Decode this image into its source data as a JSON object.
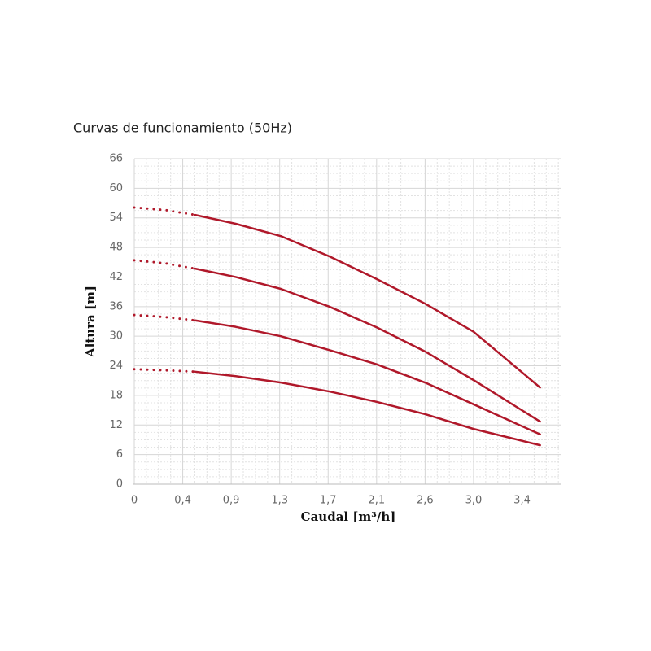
{
  "chart_data": {
    "type": "line",
    "title": "Curvas de funcionamiento (50Hz)",
    "x_label": "Caudal [m³/h]",
    "y_label": "Altura [m]",
    "xlim": [
      0,
      3.79
    ],
    "ylim": [
      0,
      66
    ],
    "xticks": [
      0,
      {
        "value": 0.43,
        "label": "0,4"
      },
      {
        "value": 0.86,
        "label": "0,9"
      },
      {
        "value": 1.29,
        "label": "1,3"
      },
      {
        "value": 1.72,
        "label": "1,7"
      },
      {
        "value": 2.15,
        "label": "2,1"
      },
      {
        "value": 2.58,
        "label": "2,6"
      },
      {
        "value": 3.01,
        "label": "3,0"
      },
      {
        "value": 3.44,
        "label": "3,4"
      }
    ],
    "yticks": [
      0,
      6,
      12,
      18,
      24,
      30,
      36,
      42,
      48,
      54,
      60,
      66
    ],
    "grid": true,
    "series": [
      {
        "color": "#b0182a",
        "line_style": "dotted",
        "x": [
          0,
          0.27,
          0.54
        ],
        "values": [
          56.1,
          55.6,
          54.6
        ]
      },
      {
        "color": "#b0182a",
        "line_style": "solid",
        "x": [
          0.54,
          0.9,
          1.3,
          1.73,
          2.15,
          2.58,
          3.01,
          3.6
        ],
        "values": [
          54.6,
          52.8,
          50.3,
          46.2,
          41.6,
          36.6,
          30.9,
          19.6
        ]
      },
      {
        "color": "#b0182a",
        "line_style": "dotted",
        "x": [
          0,
          0.27,
          0.54
        ],
        "values": [
          45.4,
          44.8,
          43.7
        ]
      },
      {
        "color": "#b0182a",
        "line_style": "solid",
        "x": [
          0.54,
          0.9,
          1.3,
          1.73,
          2.15,
          2.58,
          3.01,
          3.6
        ],
        "values": [
          43.7,
          42.0,
          39.6,
          36.0,
          31.8,
          26.9,
          21.1,
          12.7
        ]
      },
      {
        "color": "#b0182a",
        "line_style": "dotted",
        "x": [
          0,
          0.27,
          0.54
        ],
        "values": [
          34.3,
          33.9,
          33.2
        ]
      },
      {
        "color": "#b0182a",
        "line_style": "solid",
        "x": [
          0.54,
          0.9,
          1.3,
          1.73,
          2.15,
          2.58,
          3.01,
          3.6
        ],
        "values": [
          33.2,
          31.9,
          30.0,
          27.2,
          24.3,
          20.6,
          16.2,
          10.1
        ]
      },
      {
        "color": "#b0182a",
        "line_style": "dotted",
        "x": [
          0,
          0.27,
          0.54
        ],
        "values": [
          23.3,
          23.1,
          22.8
        ]
      },
      {
        "color": "#b0182a",
        "line_style": "solid",
        "x": [
          0.54,
          0.9,
          1.3,
          1.73,
          2.15,
          2.58,
          3.01,
          3.6
        ],
        "values": [
          22.8,
          21.9,
          20.6,
          18.8,
          16.7,
          14.2,
          11.2,
          7.9
        ]
      }
    ]
  }
}
